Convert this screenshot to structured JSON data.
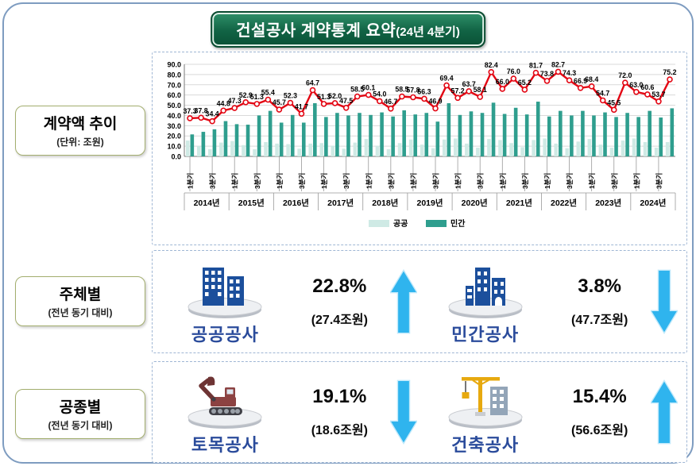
{
  "title": {
    "main": "건설공사 계약통계 요약",
    "period": "(24년 4분기)"
  },
  "sections": {
    "trend": {
      "label": "계약액 추이",
      "sublabel": "(단위: 조원)"
    },
    "subject": {
      "label": "주체별",
      "sublabel": "(전년 동기 대비)"
    },
    "worktype": {
      "label": "공종별",
      "sublabel": "(전년 동기 대비)"
    }
  },
  "chart_data": {
    "type": "bar+line",
    "unit": "조원",
    "ylim": [
      0,
      90
    ],
    "y_ticks": [
      "0.0",
      "10.0",
      "20.0",
      "30.0",
      "40.0",
      "50.0",
      "60.0",
      "70.0",
      "80.0",
      "90.0"
    ],
    "years": [
      "2014년",
      "2015년",
      "2016년",
      "2017년",
      "2018년",
      "2019년",
      "2020년",
      "2021년",
      "2022년",
      "2023년",
      "2024년"
    ],
    "quarter_labels": [
      "1분기",
      "3분기"
    ],
    "legend": [
      "공공",
      "민간"
    ],
    "legend_position": "bottom-center",
    "grid": true,
    "series": [
      {
        "name": "공공",
        "type": "bar",
        "color": "#cfeae5",
        "values": [
          15.5,
          10.0,
          7.0,
          13.5,
          15.0,
          11.0,
          7.0,
          14.0,
          12.5,
          12.0,
          7.5,
          12.5,
          13.0,
          10.5,
          7.5,
          13.5,
          17.0,
          10.5,
          7.0,
          13.0,
          16.5,
          11.5,
          8.0,
          16.5,
          17.5,
          12.5,
          8.5,
          17.0,
          16.0,
          13.0,
          9.0,
          16.0,
          17.5,
          12.5,
          8.0,
          14.5,
          17.0,
          11.5,
          8.5,
          15.5,
          17.5,
          14.0,
          8.5,
          14.0
        ]
      },
      {
        "name": "민간",
        "type": "bar",
        "color": "#2f9e8e",
        "values": [
          21.5,
          24.0,
          26.5,
          34.5,
          31.5,
          31.0,
          40.0,
          44.5,
          33.0,
          40.5,
          33.0,
          52.0,
          38.5,
          42.5,
          40.0,
          42.5,
          40.5,
          43.0,
          39.0,
          45.0,
          41.0,
          42.5,
          34.0,
          52.0,
          40.5,
          44.0,
          42.5,
          52.5,
          41.5,
          47.5,
          41.0,
          53.5,
          39.0,
          44.5,
          40.0,
          44.5,
          40.0,
          43.0,
          38.5,
          42.5,
          38.5,
          44.5,
          38.0,
          47.0
        ]
      },
      {
        "name": "계약액",
        "type": "line",
        "color": "#e30613",
        "marker": "open-circle",
        "labeled": true,
        "values": [
          37.3,
          37.8,
          34.4,
          44.8,
          47.3,
          52.9,
          51.3,
          55.4,
          45.7,
          52.3,
          41.7,
          64.7,
          51.3,
          52.0,
          47.5,
          58.5,
          60.1,
          54.0,
          46.7,
          58.5,
          57.8,
          56.3,
          46.9,
          69.4,
          57.2,
          63.7,
          58.1,
          82.4,
          66.0,
          76.0,
          65.2,
          81.7,
          73.8,
          82.7,
          74.3,
          66.9,
          68.4,
          54.7,
          45.5,
          72.0,
          63.0,
          60.6,
          53.7,
          75.2
        ]
      }
    ]
  },
  "subject_panel": {
    "left": {
      "name": "공공공사",
      "percent": "22.8%",
      "amount": "(27.4조원)",
      "direction": "up"
    },
    "right": {
      "name": "민간공사",
      "percent": "3.8%",
      "amount": "(47.7조원)",
      "direction": "down"
    }
  },
  "worktype_panel": {
    "left": {
      "name": "토목공사",
      "percent": "19.1%",
      "amount": "(18.6조원)",
      "direction": "down"
    },
    "right": {
      "name": "건축공사",
      "percent": "15.4%",
      "amount": "(56.6조원)",
      "direction": "up"
    }
  },
  "colors": {
    "banner_green": "#0d6140",
    "page_border": "#7e9cc0",
    "panel_border": "#9fb6d4",
    "labelbox_border": "#a3ae6e",
    "bar_public": "#cfeae5",
    "bar_private": "#2f9e8e",
    "line_red": "#e30613",
    "arrow_cyan": "#2fb4ee",
    "name_blue": "#2a4b9b"
  }
}
